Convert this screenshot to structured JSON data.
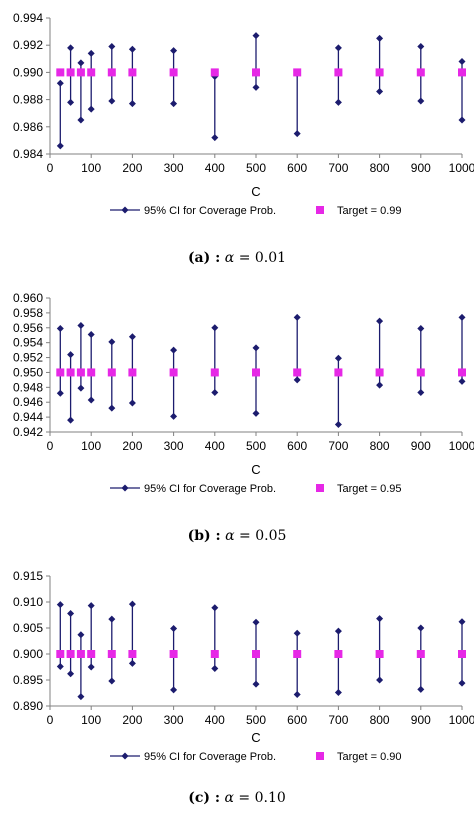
{
  "chart_data": [
    {
      "type": "scatter",
      "xlabel": "C",
      "x": [
        25,
        50,
        75,
        100,
        150,
        200,
        300,
        400,
        500,
        600,
        700,
        800,
        900,
        1000
      ],
      "xticks": [
        0,
        100,
        200,
        300,
        400,
        500,
        600,
        700,
        800,
        900,
        1000
      ],
      "xtick_labels": [
        "0",
        "100",
        "200",
        "300",
        "400",
        "500",
        "600",
        "700",
        "800",
        "900",
        "1000"
      ],
      "ylim": [
        0.984,
        0.994
      ],
      "yticks": [
        0.984,
        0.986,
        0.988,
        0.99,
        0.992,
        0.994
      ],
      "ytick_labels": [
        "0.984",
        "0.986",
        "0.988",
        "0.990",
        "0.992",
        "0.994"
      ],
      "ci_lower": [
        0.9846,
        0.9878,
        0.9865,
        0.9873,
        0.9879,
        0.9877,
        0.9877,
        0.9852,
        0.9889,
        0.9855,
        0.9878,
        0.9886,
        0.9879,
        0.9865
      ],
      "ci_upper": [
        0.9892,
        0.9918,
        0.9907,
        0.9914,
        0.9919,
        0.9917,
        0.9916,
        0.9897,
        0.9927,
        0.9899,
        0.9918,
        0.9925,
        0.9919,
        0.9908
      ],
      "target": 0.99,
      "legend": [
        "95% CI for Coverage Prob.",
        "Target = 0.99"
      ],
      "caption_label": "(a) :",
      "caption_symbol": "α",
      "caption_value": "= 0.01"
    },
    {
      "type": "scatter",
      "xlabel": "C",
      "x": [
        25,
        50,
        75,
        100,
        150,
        200,
        300,
        400,
        500,
        600,
        700,
        800,
        900,
        1000
      ],
      "xticks": [
        0,
        100,
        200,
        300,
        400,
        500,
        600,
        700,
        800,
        900,
        1000
      ],
      "xtick_labels": [
        "0",
        "100",
        "200",
        "300",
        "400",
        "500",
        "600",
        "700",
        "800",
        "900",
        "1000"
      ],
      "ylim": [
        0.942,
        0.96
      ],
      "yticks": [
        0.942,
        0.944,
        0.946,
        0.948,
        0.95,
        0.952,
        0.954,
        0.956,
        0.958,
        0.96
      ],
      "ytick_labels": [
        "0.942",
        "0.944",
        "0.946",
        "0.948",
        "0.950",
        "0.952",
        "0.954",
        "0.956",
        "0.958",
        "0.960"
      ],
      "ci_lower": [
        0.9472,
        0.9436,
        0.9479,
        0.9463,
        0.9452,
        0.9459,
        0.9441,
        0.9473,
        0.9445,
        0.949,
        0.943,
        0.9483,
        0.9473,
        0.9488
      ],
      "ci_upper": [
        0.9559,
        0.9524,
        0.9563,
        0.9551,
        0.9541,
        0.9548,
        0.953,
        0.956,
        0.9533,
        0.9574,
        0.9519,
        0.9569,
        0.9559,
        0.9574
      ],
      "target": 0.95,
      "legend": [
        "95% CI for Coverage Prob.",
        "Target = 0.95"
      ],
      "caption_label": "(b) :",
      "caption_symbol": "α",
      "caption_value": "= 0.05"
    },
    {
      "type": "scatter",
      "xlabel": "C",
      "x": [
        25,
        50,
        75,
        100,
        150,
        200,
        300,
        400,
        500,
        600,
        700,
        800,
        900,
        1000
      ],
      "xticks": [
        0,
        100,
        200,
        300,
        400,
        500,
        600,
        700,
        800,
        900,
        1000
      ],
      "xtick_labels": [
        "0",
        "100",
        "200",
        "300",
        "400",
        "500",
        "600",
        "700",
        "800",
        "900",
        "1000"
      ],
      "ylim": [
        0.89,
        0.915
      ],
      "yticks": [
        0.89,
        0.895,
        0.9,
        0.905,
        0.91,
        0.915
      ],
      "ytick_labels": [
        "0.890",
        "0.895",
        "0.900",
        "0.905",
        "0.910",
        "0.915"
      ],
      "ci_lower": [
        0.8976,
        0.8962,
        0.8918,
        0.8975,
        0.8948,
        0.8982,
        0.8931,
        0.8972,
        0.8942,
        0.8922,
        0.8926,
        0.895,
        0.8932,
        0.8944
      ],
      "ci_upper": [
        0.9095,
        0.9078,
        0.9037,
        0.9093,
        0.9067,
        0.9096,
        0.9049,
        0.9089,
        0.9061,
        0.904,
        0.9044,
        0.9068,
        0.905,
        0.9062
      ],
      "target": 0.9,
      "legend": [
        "95% CI for Coverage Prob.",
        "Target = 0.90"
      ],
      "caption_label": "(c) :",
      "caption_symbol": "α",
      "caption_value": "= 0.10"
    }
  ],
  "colors": {
    "ci_series": "#1c1c6e",
    "target_series": "#e628e6",
    "axis": "#808080"
  }
}
